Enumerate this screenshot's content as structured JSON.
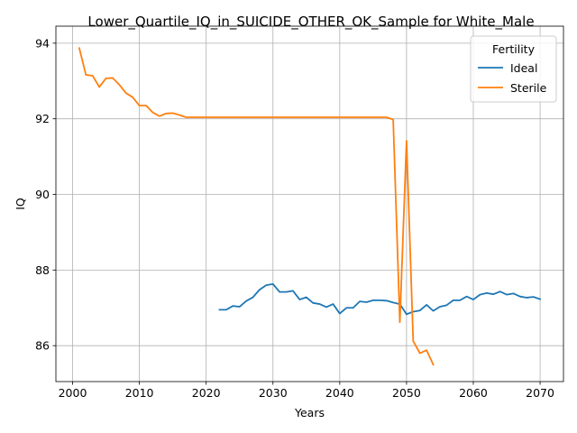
{
  "chart_data": {
    "type": "line",
    "title": "Lower_Quartile_IQ_in_SUICIDE_OTHER_OK_Sample for White_Male",
    "xlabel": "Years",
    "ylabel": "IQ",
    "xlim": [
      1997.5,
      2073.5
    ],
    "ylim": [
      85.05,
      94.45
    ],
    "xticks": [
      2000,
      2010,
      2020,
      2030,
      2040,
      2050,
      2060,
      2070
    ],
    "yticks": [
      86,
      88,
      90,
      92,
      94
    ],
    "grid": true,
    "legend": {
      "title": "Fertility",
      "placement": "top-right"
    },
    "series": [
      {
        "name": "Ideal",
        "color": "#1f77b4",
        "x": [
          2022,
          2023,
          2024,
          2025,
          2026,
          2027,
          2028,
          2029,
          2030,
          2031,
          2032,
          2033,
          2034,
          2035,
          2036,
          2037,
          2038,
          2039,
          2040,
          2041,
          2042,
          2043,
          2044,
          2045,
          2046,
          2047,
          2048,
          2049,
          2050,
          2051,
          2052,
          2053,
          2054,
          2055,
          2056,
          2057,
          2058,
          2059,
          2060,
          2061,
          2062,
          2063,
          2064,
          2065,
          2066,
          2067,
          2068,
          2069,
          2070
        ],
        "y": [
          86.95,
          86.95,
          87.05,
          87.03,
          87.18,
          87.28,
          87.48,
          87.6,
          87.63,
          87.42,
          87.42,
          87.45,
          87.22,
          87.28,
          87.13,
          87.1,
          87.02,
          87.1,
          86.85,
          87.0,
          87.0,
          87.17,
          87.15,
          87.2,
          87.2,
          87.19,
          87.14,
          87.1,
          86.83,
          86.9,
          86.93,
          87.08,
          86.92,
          87.03,
          87.07,
          87.2,
          87.2,
          87.3,
          87.22,
          87.35,
          87.39,
          87.36,
          87.43,
          87.35,
          87.38,
          87.3,
          87.27,
          87.29,
          87.23
        ]
      },
      {
        "name": "Sterile",
        "color": "#ff7f0e",
        "x": [
          2001,
          2002,
          2003,
          2004,
          2005,
          2006,
          2007,
          2008,
          2009,
          2010,
          2011,
          2012,
          2013,
          2014,
          2015,
          2016,
          2017,
          2018,
          2019,
          2020,
          2021,
          2022,
          2023,
          2024,
          2025,
          2026,
          2027,
          2028,
          2029,
          2030,
          2031,
          2032,
          2033,
          2034,
          2035,
          2036,
          2037,
          2038,
          2039,
          2040,
          2041,
          2042,
          2043,
          2044,
          2045,
          2046,
          2047,
          2048,
          2049,
          2050,
          2051,
          2052,
          2053,
          2054
        ],
        "y": [
          93.87,
          93.16,
          93.14,
          92.84,
          93.07,
          93.08,
          92.9,
          92.68,
          92.57,
          92.35,
          92.35,
          92.17,
          92.07,
          92.14,
          92.15,
          92.1,
          92.04,
          92.04,
          92.04,
          92.04,
          92.04,
          92.04,
          92.04,
          92.04,
          92.04,
          92.04,
          92.04,
          92.04,
          92.04,
          92.04,
          92.04,
          92.04,
          92.04,
          92.04,
          92.04,
          92.04,
          92.04,
          92.04,
          92.04,
          92.04,
          92.04,
          92.04,
          92.04,
          92.04,
          92.04,
          92.04,
          92.04,
          91.98,
          86.62,
          91.42,
          86.12,
          85.8,
          85.88,
          85.5
        ]
      }
    ]
  }
}
